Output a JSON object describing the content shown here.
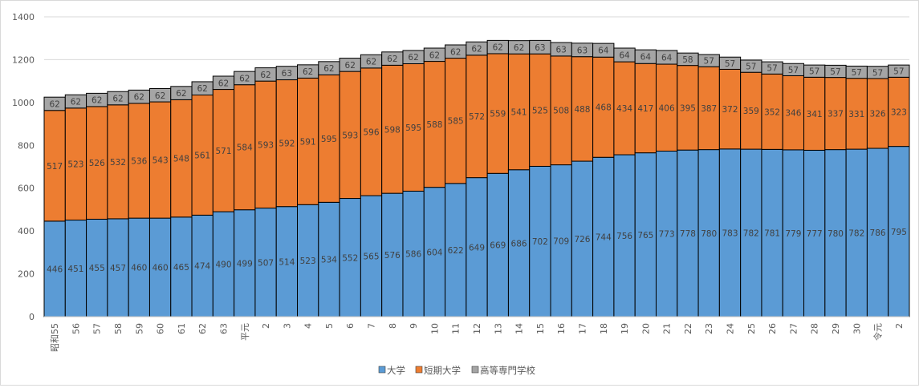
{
  "chart_data": {
    "type": "bar",
    "stacked": true,
    "categories": [
      "昭和55",
      "56",
      "57",
      "58",
      "59",
      "60",
      "61",
      "62",
      "63",
      "平元",
      "2",
      "3",
      "4",
      "5",
      "6",
      "7",
      "8",
      "9",
      "10",
      "11",
      "12",
      "13",
      "14",
      "15",
      "16",
      "17",
      "18",
      "19",
      "20",
      "21",
      "22",
      "23",
      "24",
      "25",
      "26",
      "27",
      "28",
      "29",
      "30",
      "令元",
      "2"
    ],
    "series": [
      {
        "name": "大学",
        "color": "#5b9bd5",
        "values": [
          446,
          451,
          455,
          457,
          460,
          460,
          465,
          474,
          490,
          499,
          507,
          514,
          523,
          534,
          552,
          565,
          576,
          586,
          604,
          622,
          649,
          669,
          686,
          702,
          709,
          726,
          744,
          756,
          765,
          773,
          778,
          780,
          783,
          782,
          781,
          779,
          777,
          780,
          782,
          786,
          795
        ]
      },
      {
        "name": "短期大学",
        "color": "#ed7d31",
        "values": [
          517,
          523,
          526,
          532,
          536,
          543,
          548,
          561,
          571,
          584,
          593,
          592,
          591,
          595,
          593,
          596,
          598,
          595,
          588,
          585,
          572,
          559,
          541,
          525,
          508,
          488,
          468,
          434,
          417,
          406,
          395,
          387,
          372,
          359,
          352,
          346,
          341,
          337,
          331,
          326,
          323
        ]
      },
      {
        "name": "高等専門学校",
        "color": "#a5a5a5",
        "values": [
          62,
          62,
          62,
          62,
          62,
          62,
          62,
          62,
          62,
          62,
          62,
          63,
          62,
          62,
          62,
          62,
          62,
          62,
          62,
          62,
          62,
          62,
          62,
          63,
          63,
          63,
          64,
          64,
          64,
          64,
          58,
          57,
          57,
          57,
          57,
          57,
          57,
          57,
          57,
          57,
          57
        ]
      }
    ],
    "ylim": [
      0,
      1400
    ],
    "yticks": [
      0,
      200,
      400,
      600,
      800,
      1000,
      1200,
      1400
    ],
    "grid": true,
    "legend": "bottom-center"
  }
}
